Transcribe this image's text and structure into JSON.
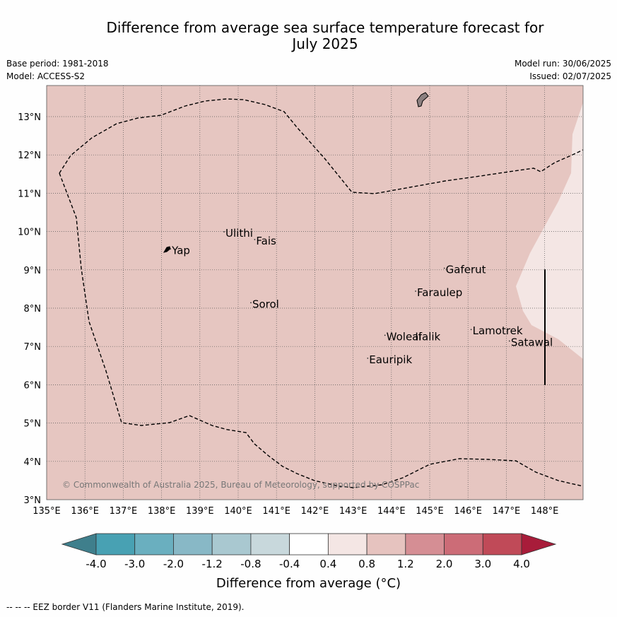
{
  "title_line1": "Difference from average sea surface temperature forecast for",
  "title_line2": "July 2025",
  "meta": {
    "base_period": "Base period: 1981-2018",
    "model": "Model: ACCESS-S2",
    "model_run": "Model run: 30/06/2025",
    "issued": "Issued: 02/07/2025"
  },
  "copyright": "© Commonwealth of Australia 2025, Bureau of Meteorology, supported by COSPPac",
  "x_ticks": [
    "135°E",
    "136°E",
    "137°E",
    "138°E",
    "139°E",
    "140°E",
    "141°E",
    "142°E",
    "143°E",
    "144°E",
    "145°E",
    "146°E",
    "147°E",
    "148°E"
  ],
  "y_ticks": [
    "3°N",
    "4°N",
    "5°N",
    "6°N",
    "7°N",
    "8°N",
    "9°N",
    "10°N",
    "11°N",
    "12°N",
    "13°N"
  ],
  "places": [
    {
      "name": "Yap",
      "lon": 138.25,
      "lat": 9.45
    },
    {
      "name": "Ulithi",
      "lon": 139.65,
      "lat": 9.9
    },
    {
      "name": "Fais",
      "lon": 140.45,
      "lat": 9.7
    },
    {
      "name": "Sorol",
      "lon": 140.35,
      "lat": 8.05
    },
    {
      "name": "Gaferut",
      "lon": 145.4,
      "lat": 8.95
    },
    {
      "name": "Faraulep",
      "lon": 144.65,
      "lat": 8.35
    },
    {
      "name": "Woleai",
      "lon": 143.85,
      "lat": 7.2
    },
    {
      "name": "Ifalik",
      "lon": 144.6,
      "lat": 7.2
    },
    {
      "name": "Lamotrek",
      "lon": 146.1,
      "lat": 7.35
    },
    {
      "name": "Eauripik",
      "lon": 143.4,
      "lat": 6.6
    },
    {
      "name": "Satawal",
      "lon": 147.1,
      "lat": 7.05
    }
  ],
  "colorbar": {
    "ticks": [
      "-4.0",
      "-3.0",
      "-2.0",
      "-1.2",
      "-0.8",
      "-0.4",
      "0.4",
      "0.8",
      "1.2",
      "2.0",
      "3.0",
      "4.0"
    ],
    "colors": [
      "#3f7f8c",
      "#48a1b3",
      "#6aafbf",
      "#88b8c6",
      "#a9c8d0",
      "#c8d8dc",
      "#ffffff",
      "#f4e6e4",
      "#e6c3bf",
      "#d58e94",
      "#cc6c77",
      "#c04a58",
      "#a81c3a"
    ],
    "label": "Difference from average (°C)"
  },
  "map_fill_colors": {
    "main": "#e6c6c1",
    "light": "#f4e6e4"
  },
  "footer": "--  --  -- EEZ border V11 (Flanders Marine Institute, 2019)."
}
